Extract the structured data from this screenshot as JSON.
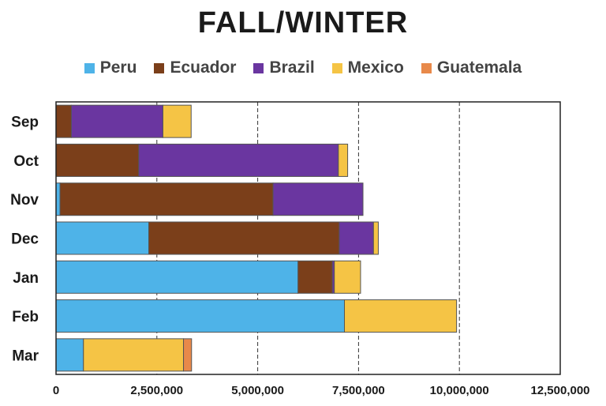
{
  "chart_data": {
    "type": "bar",
    "orientation": "horizontal",
    "stacked": true,
    "title": "FALL/WINTER",
    "categories": [
      "Sep",
      "Oct",
      "Nov",
      "Dec",
      "Jan",
      "Feb",
      "Mar"
    ],
    "series": [
      {
        "name": "Peru",
        "color": "#4eb3e8",
        "values": [
          0,
          0,
          100000,
          2300000,
          6000000,
          7150000,
          680000
        ]
      },
      {
        "name": "Ecuador",
        "color": "#7b3f1a",
        "values": [
          380000,
          2050000,
          5280000,
          4720000,
          850000,
          0,
          0
        ]
      },
      {
        "name": "Brazil",
        "color": "#6a36a0",
        "values": [
          2270000,
          4950000,
          2230000,
          850000,
          50000,
          0,
          0
        ]
      },
      {
        "name": "Mexico",
        "color": "#f5c445",
        "values": [
          700000,
          230000,
          0,
          120000,
          650000,
          2780000,
          2480000
        ]
      },
      {
        "name": "Guatemala",
        "color": "#e8894a",
        "values": [
          0,
          0,
          0,
          0,
          0,
          0,
          200000
        ]
      }
    ],
    "xlim": [
      0,
      12500000
    ],
    "xticks": [
      "0",
      "2,500,000",
      "5,000,000",
      "7,500,000",
      "10,000,000",
      "12,500,000"
    ],
    "xtick_values": [
      0,
      2500000,
      5000000,
      7500000,
      10000000,
      12500000
    ],
    "grid": "vertical dashed",
    "legend_position": "top"
  }
}
